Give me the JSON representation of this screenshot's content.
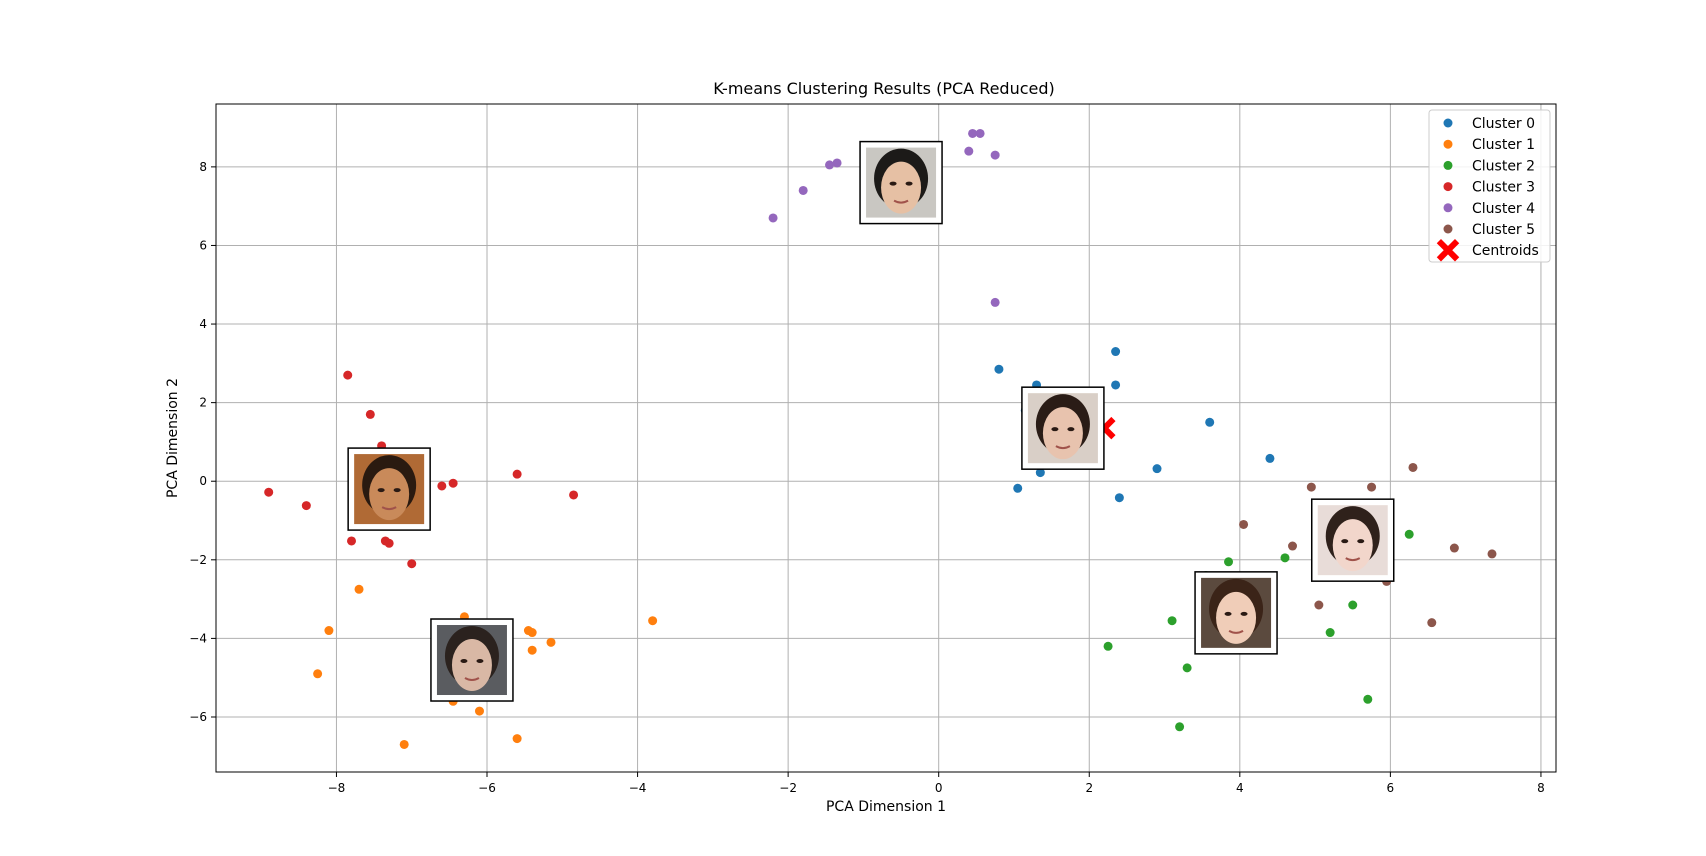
{
  "chart_data": {
    "type": "scatter",
    "title": "K-means Clustering Results (PCA Reduced)",
    "xlabel": "PCA Dimension 1",
    "ylabel": "PCA Dimension 2",
    "xlim": [
      -9.6,
      8.2
    ],
    "ylim": [
      -7.4,
      9.6
    ],
    "xticks": [
      -8,
      -6,
      -4,
      -2,
      0,
      2,
      4,
      6,
      8
    ],
    "yticks": [
      -6,
      -4,
      -2,
      0,
      2,
      4,
      6,
      8
    ],
    "grid": true,
    "legend_position": "top-right",
    "series": [
      {
        "name": "Cluster 0",
        "color": "#1f77b4",
        "points": [
          [
            0.8,
            2.85
          ],
          [
            1.3,
            2.45
          ],
          [
            1.15,
            1.8
          ],
          [
            1.05,
            -0.18
          ],
          [
            1.35,
            0.22
          ],
          [
            2.35,
            3.3
          ],
          [
            2.35,
            2.45
          ],
          [
            2.4,
            -0.42
          ],
          [
            2.9,
            0.32
          ],
          [
            3.6,
            1.5
          ],
          [
            4.4,
            0.58
          ]
        ]
      },
      {
        "name": "Cluster 1",
        "color": "#ff7f0e",
        "points": [
          [
            -8.1,
            -3.8
          ],
          [
            -8.25,
            -4.9
          ],
          [
            -7.7,
            -2.75
          ],
          [
            -7.1,
            -6.7
          ],
          [
            -6.3,
            -3.45
          ],
          [
            -6.45,
            -5.6
          ],
          [
            -6.1,
            -5.85
          ],
          [
            -5.45,
            -3.8
          ],
          [
            -5.4,
            -3.85
          ],
          [
            -5.4,
            -4.3
          ],
          [
            -5.15,
            -4.1
          ],
          [
            -5.6,
            -6.55
          ],
          [
            -3.8,
            -3.55
          ]
        ]
      },
      {
        "name": "Cluster 2",
        "color": "#2ca02c",
        "points": [
          [
            2.25,
            -4.2
          ],
          [
            3.1,
            -3.55
          ],
          [
            3.3,
            -4.75
          ],
          [
            3.2,
            -6.25
          ],
          [
            3.55,
            -2.4
          ],
          [
            3.85,
            -2.05
          ],
          [
            4.6,
            -1.95
          ],
          [
            5.2,
            -3.85
          ],
          [
            5.5,
            -3.15
          ],
          [
            5.7,
            -5.55
          ],
          [
            6.25,
            -1.35
          ]
        ]
      },
      {
        "name": "Cluster 3",
        "color": "#d62728",
        "points": [
          [
            -8.9,
            -0.28
          ],
          [
            -8.4,
            -0.62
          ],
          [
            -7.85,
            2.7
          ],
          [
            -7.55,
            1.7
          ],
          [
            -7.4,
            0.9
          ],
          [
            -7.8,
            -1.52
          ],
          [
            -7.35,
            -1.52
          ],
          [
            -7.3,
            -1.58
          ],
          [
            -7.0,
            -2.1
          ],
          [
            -6.6,
            -0.12
          ],
          [
            -6.45,
            -0.05
          ],
          [
            -5.6,
            0.18
          ],
          [
            -4.85,
            -0.35
          ]
        ]
      },
      {
        "name": "Cluster 4",
        "color": "#9467bd",
        "points": [
          [
            -2.2,
            6.7
          ],
          [
            -1.8,
            7.4
          ],
          [
            -1.45,
            8.05
          ],
          [
            -1.35,
            8.1
          ],
          [
            0.4,
            8.4
          ],
          [
            0.45,
            8.85
          ],
          [
            0.55,
            8.85
          ],
          [
            0.75,
            8.3
          ],
          [
            0.75,
            4.55
          ]
        ]
      },
      {
        "name": "Cluster 5",
        "color": "#8c564b",
        "points": [
          [
            3.65,
            -2.55
          ],
          [
            4.05,
            -1.1
          ],
          [
            4.7,
            -1.65
          ],
          [
            4.95,
            -0.15
          ],
          [
            5.05,
            -3.15
          ],
          [
            5.75,
            -0.15
          ],
          [
            5.95,
            -2.55
          ],
          [
            6.3,
            0.35
          ],
          [
            6.55,
            -3.6
          ],
          [
            6.85,
            -1.7
          ],
          [
            7.35,
            -1.85
          ]
        ]
      }
    ],
    "centroids": {
      "name": "Centroids",
      "color": "#ff0000",
      "points": [
        [
          2.2,
          1.35
        ],
        [
          -6.1,
          -4.55
        ],
        [
          4.05,
          -3.35
        ],
        [
          -7.3,
          -0.2
        ],
        [
          -0.55,
          7.6
        ],
        [
          5.4,
          -1.5
        ]
      ]
    },
    "thumbnails": [
      {
        "cluster": 0,
        "at": [
          1.65,
          1.35
        ],
        "skin": "#e8c3ae",
        "hair": "#2a1c16",
        "bg": "#d9cfc7"
      },
      {
        "cluster": 1,
        "at": [
          -6.2,
          -4.55
        ],
        "skin": "#d9b8a5",
        "hair": "#2b221e",
        "bg": "#5a5c60"
      },
      {
        "cluster": 2,
        "at": [
          3.95,
          -3.35
        ],
        "skin": "#f0cdb8",
        "hair": "#3b2418",
        "bg": "#5b4a3e"
      },
      {
        "cluster": 3,
        "at": [
          -7.3,
          -0.2
        ],
        "skin": "#c98a5a",
        "hair": "#2a1a10",
        "bg": "#b06a35"
      },
      {
        "cluster": 4,
        "at": [
          -0.5,
          7.6
        ],
        "skin": "#e6c0a4",
        "hair": "#1c1a18",
        "bg": "#c9c7c2"
      },
      {
        "cluster": 5,
        "at": [
          5.5,
          -1.5
        ],
        "skin": "#f2d6cb",
        "hair": "#2f211b",
        "bg": "#e8dcd8"
      }
    ]
  }
}
